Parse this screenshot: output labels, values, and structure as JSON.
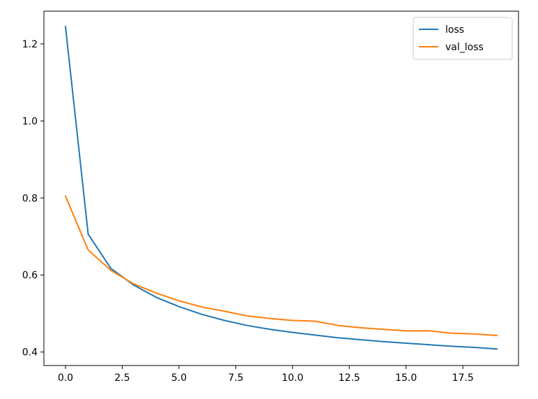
{
  "chart_data": {
    "type": "line",
    "title": "",
    "xlabel": "",
    "ylabel": "",
    "xlim": [
      -0.95,
      19.95
    ],
    "ylim": [
      0.365,
      1.285
    ],
    "xticks": [
      0.0,
      2.5,
      5.0,
      7.5,
      10.0,
      12.5,
      15.0,
      17.5
    ],
    "xtick_labels": [
      "0.0",
      "2.5",
      "5.0",
      "7.5",
      "10.0",
      "12.5",
      "15.0",
      "17.5"
    ],
    "yticks": [
      0.4,
      0.6,
      0.8,
      1.0,
      1.2
    ],
    "ytick_labels": [
      "0.4",
      "0.6",
      "0.8",
      "1.0",
      "1.2"
    ],
    "grid": false,
    "legend_position": "upper right",
    "x": [
      0,
      1,
      2,
      3,
      4,
      5,
      6,
      7,
      8,
      9,
      10,
      11,
      12,
      13,
      14,
      15,
      16,
      17,
      18,
      19
    ],
    "series": [
      {
        "name": "loss",
        "color": "#1f77b4",
        "values": [
          1.245,
          0.706,
          0.617,
          0.574,
          0.542,
          0.518,
          0.498,
          0.482,
          0.469,
          0.459,
          0.451,
          0.444,
          0.437,
          0.432,
          0.427,
          0.423,
          0.419,
          0.415,
          0.412,
          0.408
        ]
      },
      {
        "name": "val_loss",
        "color": "#ff7f0e",
        "values": [
          0.805,
          0.665,
          0.612,
          0.577,
          0.553,
          0.533,
          0.517,
          0.506,
          0.494,
          0.487,
          0.482,
          0.48,
          0.469,
          0.463,
          0.459,
          0.455,
          0.455,
          0.449,
          0.447,
          0.443
        ]
      }
    ]
  }
}
